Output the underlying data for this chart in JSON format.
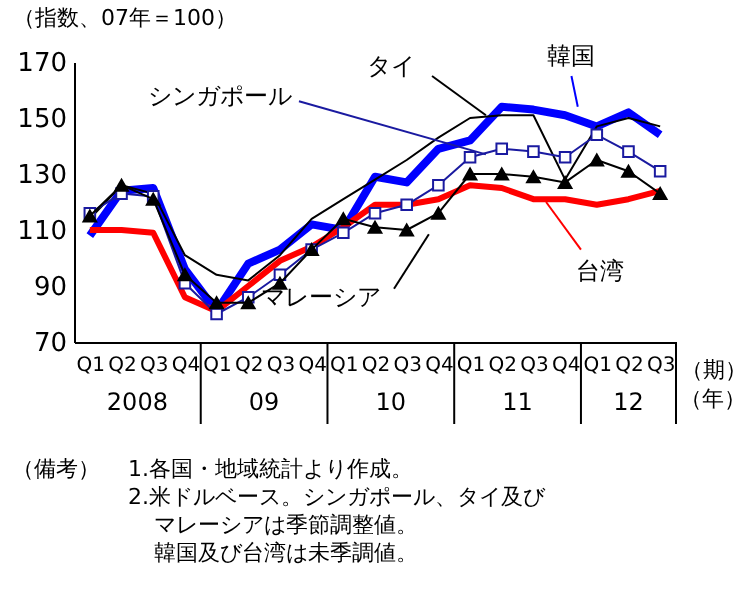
{
  "chart_data": {
    "type": "line",
    "ylabel": "（指数、07年＝100）",
    "xlabel": "（期）",
    "categories": [
      "Q1",
      "Q2",
      "Q3",
      "Q4",
      "Q1",
      "Q2",
      "Q3",
      "Q4",
      "Q1",
      "Q2",
      "Q3",
      "Q4",
      "Q1",
      "Q2",
      "Q3",
      "Q4",
      "Q1",
      "Q2",
      "Q3"
    ],
    "ylim": [
      70,
      170
    ],
    "yticks": [
      70,
      90,
      110,
      130,
      150,
      170
    ],
    "grid": false,
    "series": [
      {
        "name": "韓国",
        "color": "#0000ff",
        "marker": "none",
        "values": [
          108,
          124,
          125,
          96,
          81,
          98,
          103,
          112,
          110,
          129,
          127,
          139,
          142,
          154,
          153,
          151,
          147,
          152,
          144
        ]
      },
      {
        "name": "タイ",
        "color": "#000000",
        "marker": "none",
        "values": [
          114,
          126,
          123,
          101,
          94,
          92,
          101,
          114,
          121,
          128,
          135,
          143,
          150,
          151,
          151,
          128,
          147,
          150,
          147
        ]
      },
      {
        "name": "シンガポール",
        "color": "#1a1aa0",
        "marker": "square",
        "values": [
          116,
          123,
          122,
          91,
          80,
          86,
          94,
          103,
          109,
          116,
          119,
          126,
          136,
          139,
          138,
          136,
          144,
          138,
          131
        ]
      },
      {
        "name": "マレーシア",
        "color": "#000000",
        "marker": "triangle",
        "values": [
          115,
          126,
          121,
          94,
          84,
          84,
          91,
          103,
          114,
          111,
          110,
          116,
          130,
          130,
          129,
          127,
          135,
          131,
          123
        ]
      },
      {
        "name": "台湾",
        "color": "#ff0000",
        "marker": "none",
        "values": [
          110,
          110,
          109,
          86,
          81,
          90,
          99,
          104,
          111,
          119,
          119,
          121,
          126,
          125,
          121,
          121,
          119,
          121,
          124
        ]
      }
    ],
    "annotations": [
      "2008",
      "09",
      "10",
      "11",
      "12",
      "（年）",
      "（備考）",
      "1.各国・地域統計より作成。",
      "2.米ドルベース。シンガポール、タイ及びマレーシアは季節調整値。韓国及び台湾は未季調値。"
    ]
  }
}
